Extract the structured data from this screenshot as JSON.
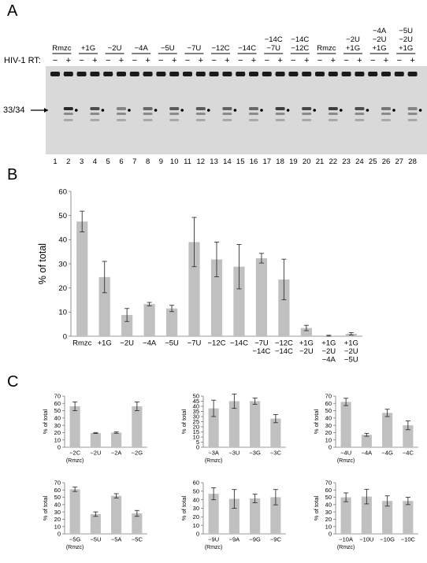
{
  "panels": {
    "a": "A",
    "b": "B",
    "c": "C"
  },
  "gel": {
    "rt_label": "HIV-1 RT:",
    "band_label": "33/34",
    "minus": "−",
    "plus": "+",
    "groups": [
      [
        "Rmzc"
      ],
      [
        "+1G"
      ],
      [
        "−2U"
      ],
      [
        "−4A"
      ],
      [
        "−5U"
      ],
      [
        "−7U"
      ],
      [
        "−12C"
      ],
      [
        "−14C"
      ],
      [
        "−14C",
        "−7U"
      ],
      [
        "−14C",
        "−12C"
      ],
      [
        "Rmzc"
      ],
      [
        "−2U",
        "+1G"
      ],
      [
        "−4A",
        "−2U",
        "+1G"
      ],
      [
        "−5U",
        "−2U",
        "+1G"
      ]
    ],
    "lanes": [
      "1",
      "2",
      "3",
      "4",
      "5",
      "6",
      "7",
      "8",
      "9",
      "10",
      "11",
      "12",
      "13",
      "14",
      "15",
      "16",
      "17",
      "18",
      "19",
      "20",
      "21",
      "22",
      "23",
      "24",
      "25",
      "26",
      "27",
      "28"
    ],
    "product_intensity": [
      0.85,
      0.6,
      0.2,
      0.4,
      0.5,
      0.5,
      0.45,
      0.4,
      0.7,
      0.65,
      0.7,
      0.6,
      0.3,
      0.2,
      0.1
    ]
  },
  "chart_b": {
    "ylabel": "% of total",
    "yticks": [
      "0",
      "10",
      "20",
      "30",
      "40",
      "50",
      "60"
    ],
    "ylim": [
      0,
      60
    ],
    "categories": [
      [
        "Rmzc"
      ],
      [
        "+1G"
      ],
      [
        "−2U"
      ],
      [
        "−4A"
      ],
      [
        "−5U"
      ],
      [
        "−7U"
      ],
      [
        "−12C"
      ],
      [
        "−14C"
      ],
      [
        "−7U",
        "−14C"
      ],
      [
        "−12C",
        "−14C"
      ],
      [
        "+1G",
        "−2U"
      ],
      [
        "+1G",
        "−2U",
        "−4A"
      ],
      [
        "+1G",
        "−2U",
        "−5U"
      ]
    ],
    "values": [
      47.5,
      24.5,
      8.8,
      13.3,
      11.5,
      39,
      31.8,
      28.8,
      32.3,
      23.5,
      3.4,
      0.2,
      1.0
    ],
    "errors": [
      4.3,
      6.5,
      2.7,
      0.7,
      1.3,
      10.2,
      7.2,
      9.2,
      2.0,
      8.4,
      1.1,
      0.2,
      0.5
    ]
  },
  "chart_c": [
    {
      "ylabel": "% of total",
      "yticks": [
        "0",
        "10",
        "20",
        "30",
        "40",
        "50",
        "60",
        "70"
      ],
      "ylim": [
        0,
        70
      ],
      "categories": [
        "−2C",
        "−2U",
        "−2A",
        "−2G"
      ],
      "sublabel": "(Rmzc)",
      "values": [
        56,
        19.5,
        20,
        56
      ],
      "errors": [
        6,
        0.6,
        0.9,
        6
      ]
    },
    {
      "ylabel": "% of total",
      "yticks": [
        "0",
        "5",
        "10",
        "15",
        "20",
        "25",
        "30",
        "35",
        "40",
        "45",
        "50"
      ],
      "ylim": [
        0,
        50
      ],
      "categories": [
        "−3A",
        "−3U",
        "−3G",
        "−3C"
      ],
      "sublabel": "(Rmzc)",
      "values": [
        38,
        45,
        45,
        28
      ],
      "errors": [
        8,
        7,
        3,
        4
      ]
    },
    {
      "ylabel": "% of total",
      "yticks": [
        "0",
        "10",
        "20",
        "30",
        "40",
        "50",
        "60",
        "70"
      ],
      "ylim": [
        0,
        70
      ],
      "categories": [
        "−4U",
        "−4A",
        "−4G",
        "−4C"
      ],
      "sublabel": "(Rmzc)",
      "values": [
        62,
        17,
        47,
        30
      ],
      "errors": [
        5,
        2,
        5,
        6
      ]
    },
    {
      "ylabel": "% of total",
      "yticks": [
        "0",
        "10",
        "20",
        "30",
        "40",
        "50",
        "60",
        "70"
      ],
      "ylim": [
        0,
        70
      ],
      "categories": [
        "−5G",
        "−5U",
        "−5A",
        "−5C"
      ],
      "sublabel": "(Rmzc)",
      "values": [
        61,
        27,
        52,
        28
      ],
      "errors": [
        3,
        3,
        3,
        4
      ]
    },
    {
      "ylabel": "% of total",
      "yticks": [
        "0",
        "10",
        "20",
        "30",
        "40",
        "50",
        "60"
      ],
      "ylim": [
        0,
        60
      ],
      "categories": [
        "−9U",
        "−9A",
        "−9G",
        "−9C"
      ],
      "sublabel": "(Rmzc)",
      "values": [
        47,
        41,
        41.5,
        43
      ],
      "errors": [
        7,
        11,
        5,
        9
      ]
    },
    {
      "ylabel": "% of total",
      "yticks": [
        "0",
        "10",
        "20",
        "30",
        "40",
        "50",
        "60",
        "70"
      ],
      "ylim": [
        0,
        70
      ],
      "categories": [
        "−10A",
        "−10U",
        "−10G",
        "−10C"
      ],
      "sublabel": "(Rmzc)",
      "values": [
        50,
        51,
        45,
        45
      ],
      "errors": [
        6,
        10,
        7,
        5
      ]
    }
  ]
}
